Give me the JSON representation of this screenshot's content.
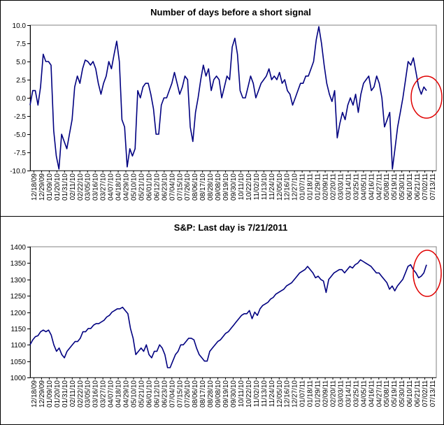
{
  "chart_data": [
    {
      "type": "line",
      "title": "Number of days before a short signal",
      "xlabel": "",
      "ylabel": "",
      "ylim": [
        -10,
        10
      ],
      "yticks": [
        "10.0",
        "7.5",
        "5.0",
        "2.5",
        "0.0",
        "-2.5",
        "-5.0",
        "-7.5",
        "-10.0"
      ],
      "ytick_values": [
        10,
        7.5,
        5,
        2.5,
        0,
        -2.5,
        -5,
        -7.5,
        -10
      ],
      "grid": true,
      "reference_line": {
        "value": 0,
        "color": "#e00000"
      },
      "xticks": [
        "12/18/09",
        "12/29/09",
        "01/09/10",
        "01/20/10",
        "01/31/10",
        "02/11/10",
        "02/22/10",
        "03/05/10",
        "03/16/10",
        "03/27/10",
        "04/07/10",
        "04/18/10",
        "04/29/10",
        "05/10/10",
        "05/21/10",
        "06/01/10",
        "06/12/10",
        "06/23/10",
        "07/04/10",
        "07/15/10",
        "07/26/10",
        "08/06/10",
        "08/17/10",
        "08/28/10",
        "09/08/10",
        "09/19/10",
        "09/30/10",
        "10/11/10",
        "10/22/10",
        "11/02/10",
        "11/13/10",
        "11/24/10",
        "12/05/10",
        "12/16/10",
        "12/27/10",
        "01/07/11",
        "01/18/11",
        "01/29/11",
        "02/09/11",
        "02/20/11",
        "03/03/11",
        "03/14/11",
        "03/25/11",
        "04/05/11",
        "04/16/11",
        "04/27/11",
        "05/08/11",
        "05/19/11",
        "05/30/11",
        "06/10/11",
        "06/21/11",
        "07/02/11",
        "07/13/11"
      ],
      "series": [
        {
          "color": "#000080",
          "values": [
            -1.0,
            1.0,
            1.0,
            -1.0,
            1.5,
            6.0,
            5.0,
            5.0,
            4.5,
            -4.5,
            -8.0,
            -9.8,
            -5.0,
            -6.0,
            -7.0,
            -5.0,
            -3.0,
            1.5,
            3.0,
            2.0,
            4.0,
            5.2,
            5.0,
            4.5,
            5.0,
            4.0,
            2.0,
            0.5,
            2.0,
            3.0,
            5.0,
            4.0,
            6.0,
            7.8,
            5.0,
            -3.0,
            -4.0,
            -9.5,
            -7.0,
            -8.0,
            -7.0,
            1.0,
            0.0,
            1.5,
            2.0,
            2.0,
            0.5,
            -1.5,
            -5.0,
            -5.0,
            -1.0,
            0.0,
            0.0,
            1.0,
            2.0,
            3.5,
            2.0,
            0.5,
            1.5,
            3.0,
            2.5,
            -4.0,
            -6.0,
            -2.0,
            0.0,
            2.5,
            4.5,
            3.0,
            4.0,
            1.0,
            2.5,
            3.0,
            2.5,
            0.0,
            1.5,
            3.0,
            2.5,
            7.0,
            8.2,
            6.0,
            1.0,
            0.0,
            0.0,
            1.5,
            3.0,
            2.0,
            0.0,
            1.0,
            2.0,
            2.5,
            3.0,
            4.0,
            2.5,
            3.0,
            2.5,
            3.5,
            2.0,
            2.5,
            1.0,
            0.5,
            -1.0,
            0.0,
            1.0,
            2.0,
            2.0,
            3.0,
            3.0,
            4.0,
            5.0,
            8.0,
            9.8,
            7.5,
            4.5,
            2.0,
            0.5,
            -0.5,
            1.0,
            -5.5,
            -3.5,
            -2.0,
            -3.0,
            -1.0,
            0.0,
            -1.0,
            0.5,
            -2.0,
            0.5,
            2.0,
            2.5,
            3.0,
            1.0,
            1.5,
            3.0,
            2.0,
            0.0,
            -4.0,
            -3.0,
            -2.0,
            -9.8,
            -7.0,
            -4.0,
            -2.0,
            0.0,
            2.5,
            5.0,
            4.5,
            5.5,
            3.5,
            1.5,
            0.5,
            1.5,
            1.0
          ]
        }
      ]
    },
    {
      "type": "line",
      "title": "S&P: Last day is 7/21/2011",
      "xlabel": "",
      "ylabel": "",
      "ylim": [
        1000,
        1400
      ],
      "yticks": [
        "1400",
        "1350",
        "1300",
        "1250",
        "1200",
        "1150",
        "1100",
        "1050",
        "1000"
      ],
      "ytick_values": [
        1400,
        1350,
        1300,
        1250,
        1200,
        1150,
        1100,
        1050,
        1000
      ],
      "grid": true,
      "xticks": [
        "12/18/09",
        "12/29/09",
        "01/09/10",
        "01/20/10",
        "01/31/10",
        "02/11/10",
        "02/22/10",
        "03/05/10",
        "03/16/10",
        "03/27/10",
        "04/07/10",
        "04/18/10",
        "04/29/10",
        "05/10/10",
        "05/21/10",
        "06/01/10",
        "06/12/10",
        "06/23/10",
        "07/04/10",
        "07/15/10",
        "07/26/10",
        "08/06/10",
        "08/17/10",
        "08/28/10",
        "09/08/10",
        "09/19/10",
        "09/30/10",
        "10/11/10",
        "10/22/10",
        "11/02/10",
        "11/13/10",
        "11/24/10",
        "12/05/10",
        "12/16/10",
        "12/27/10",
        "01/07/11",
        "01/18/11",
        "01/29/11",
        "02/09/11",
        "02/20/11",
        "03/03/11",
        "03/14/11",
        "03/25/11",
        "04/05/11",
        "04/16/11",
        "04/27/11",
        "05/08/11",
        "05/19/11",
        "05/30/11",
        "06/10/11",
        "06/21/11",
        "07/02/11",
        "07/13/11"
      ],
      "series": [
        {
          "color": "#000080",
          "values": [
            1100,
            1115,
            1125,
            1128,
            1140,
            1145,
            1140,
            1145,
            1130,
            1100,
            1080,
            1090,
            1070,
            1060,
            1080,
            1090,
            1100,
            1110,
            1110,
            1120,
            1140,
            1140,
            1150,
            1150,
            1160,
            1165,
            1165,
            1170,
            1175,
            1185,
            1190,
            1200,
            1205,
            1210,
            1210,
            1215,
            1205,
            1195,
            1150,
            1120,
            1070,
            1080,
            1090,
            1080,
            1100,
            1070,
            1060,
            1080,
            1080,
            1100,
            1090,
            1070,
            1030,
            1030,
            1050,
            1070,
            1080,
            1100,
            1100,
            1110,
            1120,
            1120,
            1115,
            1090,
            1070,
            1060,
            1050,
            1050,
            1080,
            1090,
            1100,
            1110,
            1115,
            1125,
            1135,
            1140,
            1150,
            1160,
            1170,
            1180,
            1190,
            1195,
            1195,
            1205,
            1180,
            1200,
            1190,
            1210,
            1220,
            1225,
            1230,
            1240,
            1245,
            1255,
            1260,
            1265,
            1270,
            1280,
            1285,
            1290,
            1300,
            1310,
            1320,
            1325,
            1330,
            1340,
            1330,
            1320,
            1305,
            1310,
            1300,
            1295,
            1260,
            1300,
            1310,
            1320,
            1325,
            1330,
            1330,
            1320,
            1330,
            1340,
            1335,
            1345,
            1350,
            1360,
            1355,
            1350,
            1345,
            1340,
            1330,
            1320,
            1320,
            1310,
            1300,
            1290,
            1270,
            1280,
            1265,
            1280,
            1290,
            1300,
            1320,
            1340,
            1345,
            1330,
            1320,
            1305,
            1310,
            1320,
            1345
          ]
        }
      ]
    }
  ],
  "annotations": {
    "highlight_color": "#e00000"
  }
}
